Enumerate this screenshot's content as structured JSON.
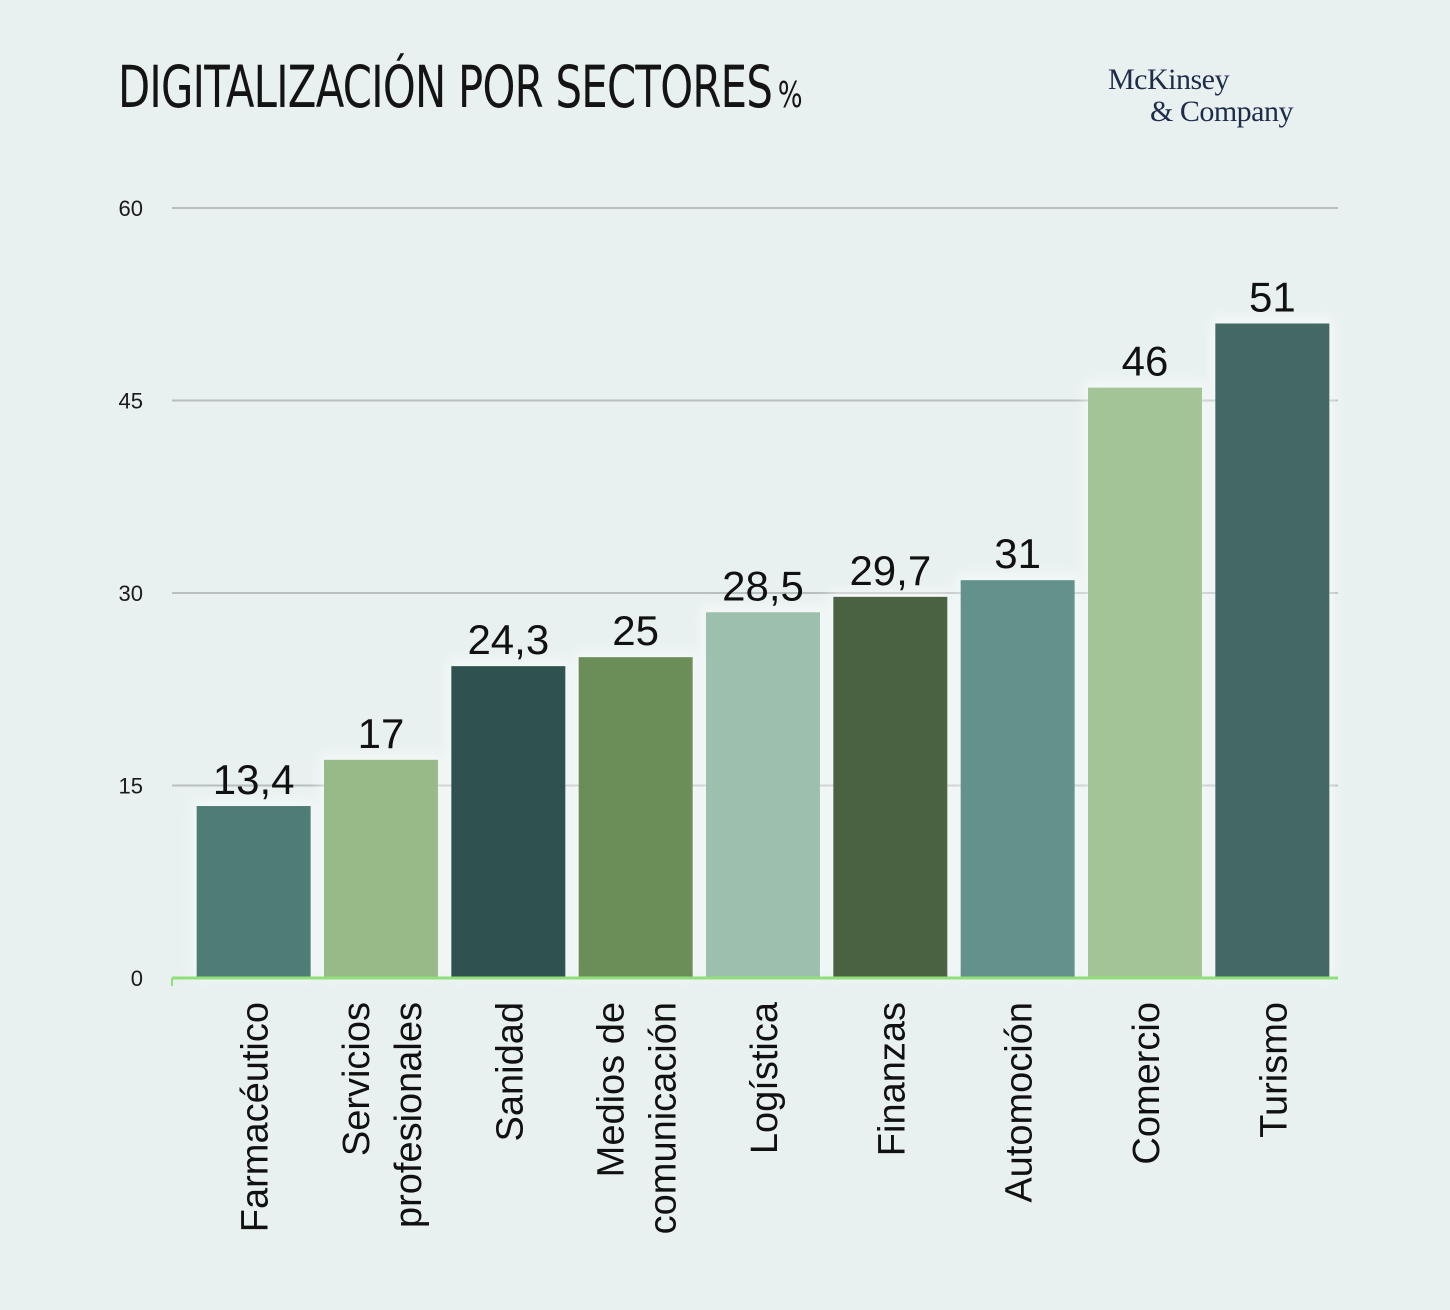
{
  "title": "DIGITALIZACIÓN POR SECTORES",
  "title_unit": "%",
  "brand": {
    "line1": "McKinsey",
    "line2": "& Company"
  },
  "chart_data": {
    "type": "bar",
    "categories": [
      [
        "Farmacéutico"
      ],
      [
        "Servicios",
        "profesionales"
      ],
      [
        "Sanidad"
      ],
      [
        "Medios de",
        "comunicación"
      ],
      [
        "Logística"
      ],
      [
        "Finanzas"
      ],
      [
        "Automoción"
      ],
      [
        "Comercio"
      ],
      [
        "Turismo"
      ]
    ],
    "values": [
      13.4,
      17,
      24.3,
      25,
      28.5,
      29.7,
      31,
      46,
      51
    ],
    "value_labels": [
      "13,4",
      "17",
      "24,3",
      "25",
      "28,5",
      "29,7",
      "31",
      "46",
      "51"
    ],
    "colors": [
      "#4e7d76",
      "#97bb88",
      "#2f5150",
      "#6b8e58",
      "#9cc0ad",
      "#4a6242",
      "#63928c",
      "#a3c497",
      "#446864"
    ],
    "yticks": [
      0,
      15,
      30,
      45,
      60
    ],
    "ylim": [
      0,
      60
    ],
    "grid": true,
    "legend": "none",
    "gridline_color": "#b9bfbe",
    "baseline_color": "#8fe07a"
  }
}
